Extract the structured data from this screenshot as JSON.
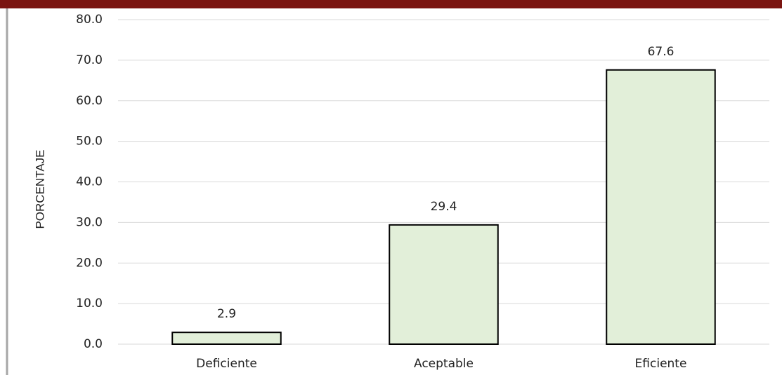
{
  "chart_data": {
    "type": "bar",
    "y_label": "PORCENTAJE",
    "categories": [
      "Deficiente",
      "Aceptable",
      "Eficiente"
    ],
    "values": [
      2.9,
      29.4,
      67.6
    ],
    "color": "#e2efd9",
    "edge_color": "#000000",
    "ylim": [
      0,
      80
    ],
    "yticks": [
      {
        "value": 0,
        "label": "0.0"
      },
      {
        "value": 10,
        "label": "10.0"
      },
      {
        "value": 20,
        "label": "20.0"
      },
      {
        "value": 30,
        "label": "30.0"
      },
      {
        "value": 40,
        "label": "40.0"
      },
      {
        "value": 50,
        "label": "50.0"
      },
      {
        "value": 60,
        "label": "60.0"
      },
      {
        "value": 70,
        "label": "70.0"
      },
      {
        "value": 80,
        "label": "80.0"
      }
    ],
    "grid": true
  }
}
